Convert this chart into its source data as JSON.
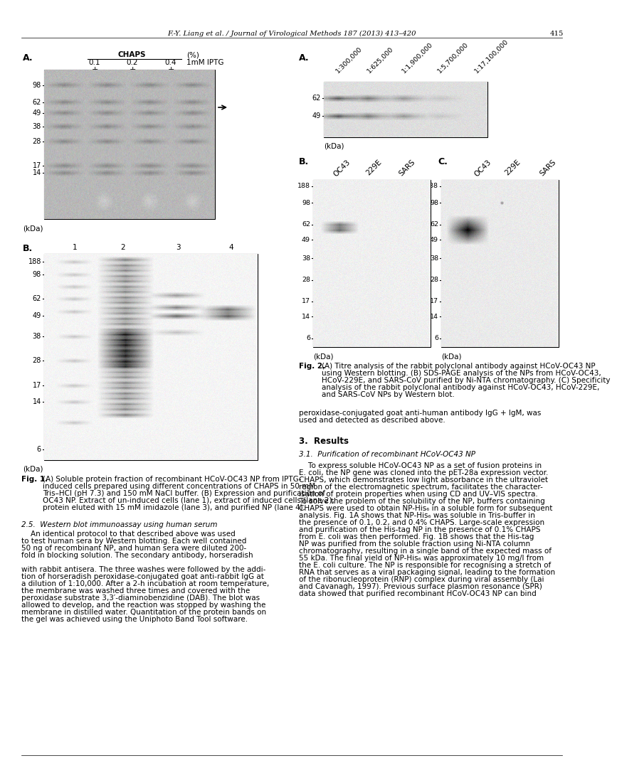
{
  "header_text": "F.-Y. Liang et al. / Journal of Virological Methods 187 (2013) 413–420",
  "page_number": "415",
  "background_color": "#ffffff",
  "fig1_label": "Fig. 1.",
  "fig1_caption": "(A) Soluble protein fraction of recombinant HCoV-OC43 NP from IPTG-induced cells prepared using different concentrations of CHAPS in 50 mM Tris–HCl (pH 7.3) and 150 mM NaCl buffer. (B) Expression and purification of OC43 NP. Extract of un-induced cells (lane 1), extract of induced cells (lane 2), protein eluted with 15 mM imidazole (lane 3), and purified NP (lane 4).",
  "fig2_label": "Fig. 2.",
  "fig2_caption": "(A) Titre analysis of the rabbit polyclonal antibody against HCoV-OC43 NP using Western blotting. (B) SDS-PAGE analysis of the NPs from HCoV-OC43, HCoV-229E, and SARS-CoV purified by Ni-NTA chromatography. (C) Specificity analysis of the rabbit polyclonal antibody against HCoV-OC43, HCoV-229E, and SARS-CoV NPs by Western blot.",
  "section3_header": "3.  Results",
  "section31_header": "3.1.  Purification of recombinant HCoV-OC43 NP",
  "paragraph_antibody": "with rabbit antisera. The three washes were followed by the addition of horseradish peroxidase-conjugated goat anti-rabbit IgG at a dilution of 1:10,000. After a 2-h incubation at room temperature, the membrane was washed three times and covered with the peroxidase substrate 3,3′-diaminobenzidine (DAB). The blot was allowed to develop, and the reaction was stopped by washing the membrane in distilled water. Quantitation of the protein bands on the gel was achieved using the Uniphoto Band Tool software.",
  "section25_header": "2.5.  Western blot immunoassay using human serum",
  "paragraph_identical": "    An identical protocol to that described above was used to test human sera by Western blotting. Each well contained 50 ng of recombinant NP, and human sera were diluted 200-fold in blocking solution. The secondary antibody, horseradish",
  "paragraph_peroxidase": "peroxidase-conjugated goat anti-human antibody IgG + IgM, was used and detected as described above.",
  "paragraph_results": "    To express soluble HCoV-OC43 NP as a set of fusion proteins in E. coli, the NP gene was cloned into the pET-28a expression vector. CHAPS, which demonstrates low light absorbance in the ultraviolet region of the electromagnetic spectrum, facilitates the characterisation of protein properties when using CD and UV–VIS spectra. To solve the problem of the solubility of the NP, buffers containing CHAPS were used to obtain NP-His6 in a soluble form for subsequent analysis. Fig. 1A shows that NP-His6 was soluble in Tris-buffer in the presence of 0.1, 0.2, and 0.4% CHAPS. Large-scale expression and purification of the His-tag NP in the presence of 0.1% CHAPS from E. coli was then performed. Fig. 1B shows that the His-tag NP was purified from the soluble fraction using Ni-NTA column chromatography, resulting in a single band of the expected mass of 55 kDa. The final yield of NP-His6 was approximately 10 mg/l from the E. coli culture. The NP is responsible for recognising a stretch of RNA that serves as a viral packaging signal, leading to the formation of the ribonucleoprotein (RNP) complex during viral assembly (Lai and Cavanagh, 1997). Previous surface plasmon resonance (SPR) data showed that purified recombinant HCoV-OC43 NP can bind"
}
